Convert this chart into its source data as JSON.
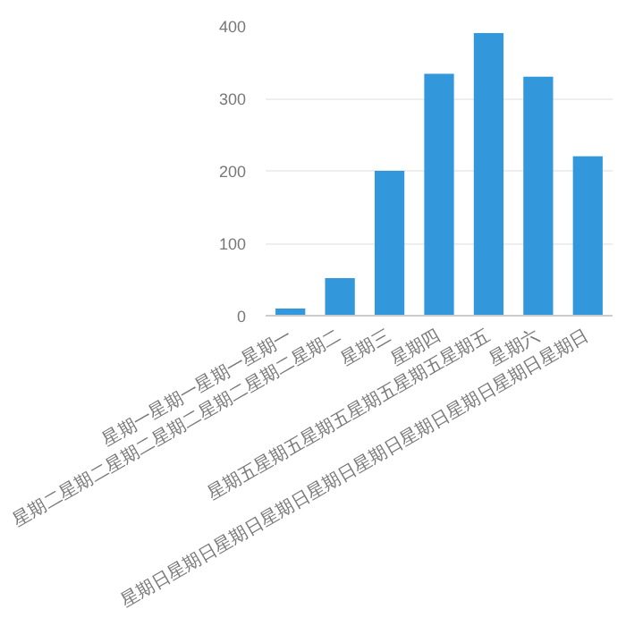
{
  "chart_data": {
    "type": "bar",
    "categories": [
      "星期一星期一星期一星期一",
      "星期二星期二星期二星期二星期二星期二星期二",
      "星期三",
      "星期四",
      "星期五星期五星期五星期五星期五星期五",
      "星期六",
      "星期日星期日星期日星期日星期日星期日星期日星期日星期日星期日"
    ],
    "values": [
      10,
      52,
      200,
      334,
      390,
      330,
      220
    ],
    "color": "#3398db",
    "ylim": [
      0,
      400
    ],
    "yticks": [
      0,
      100,
      200,
      300,
      400
    ],
    "grid": "y"
  }
}
